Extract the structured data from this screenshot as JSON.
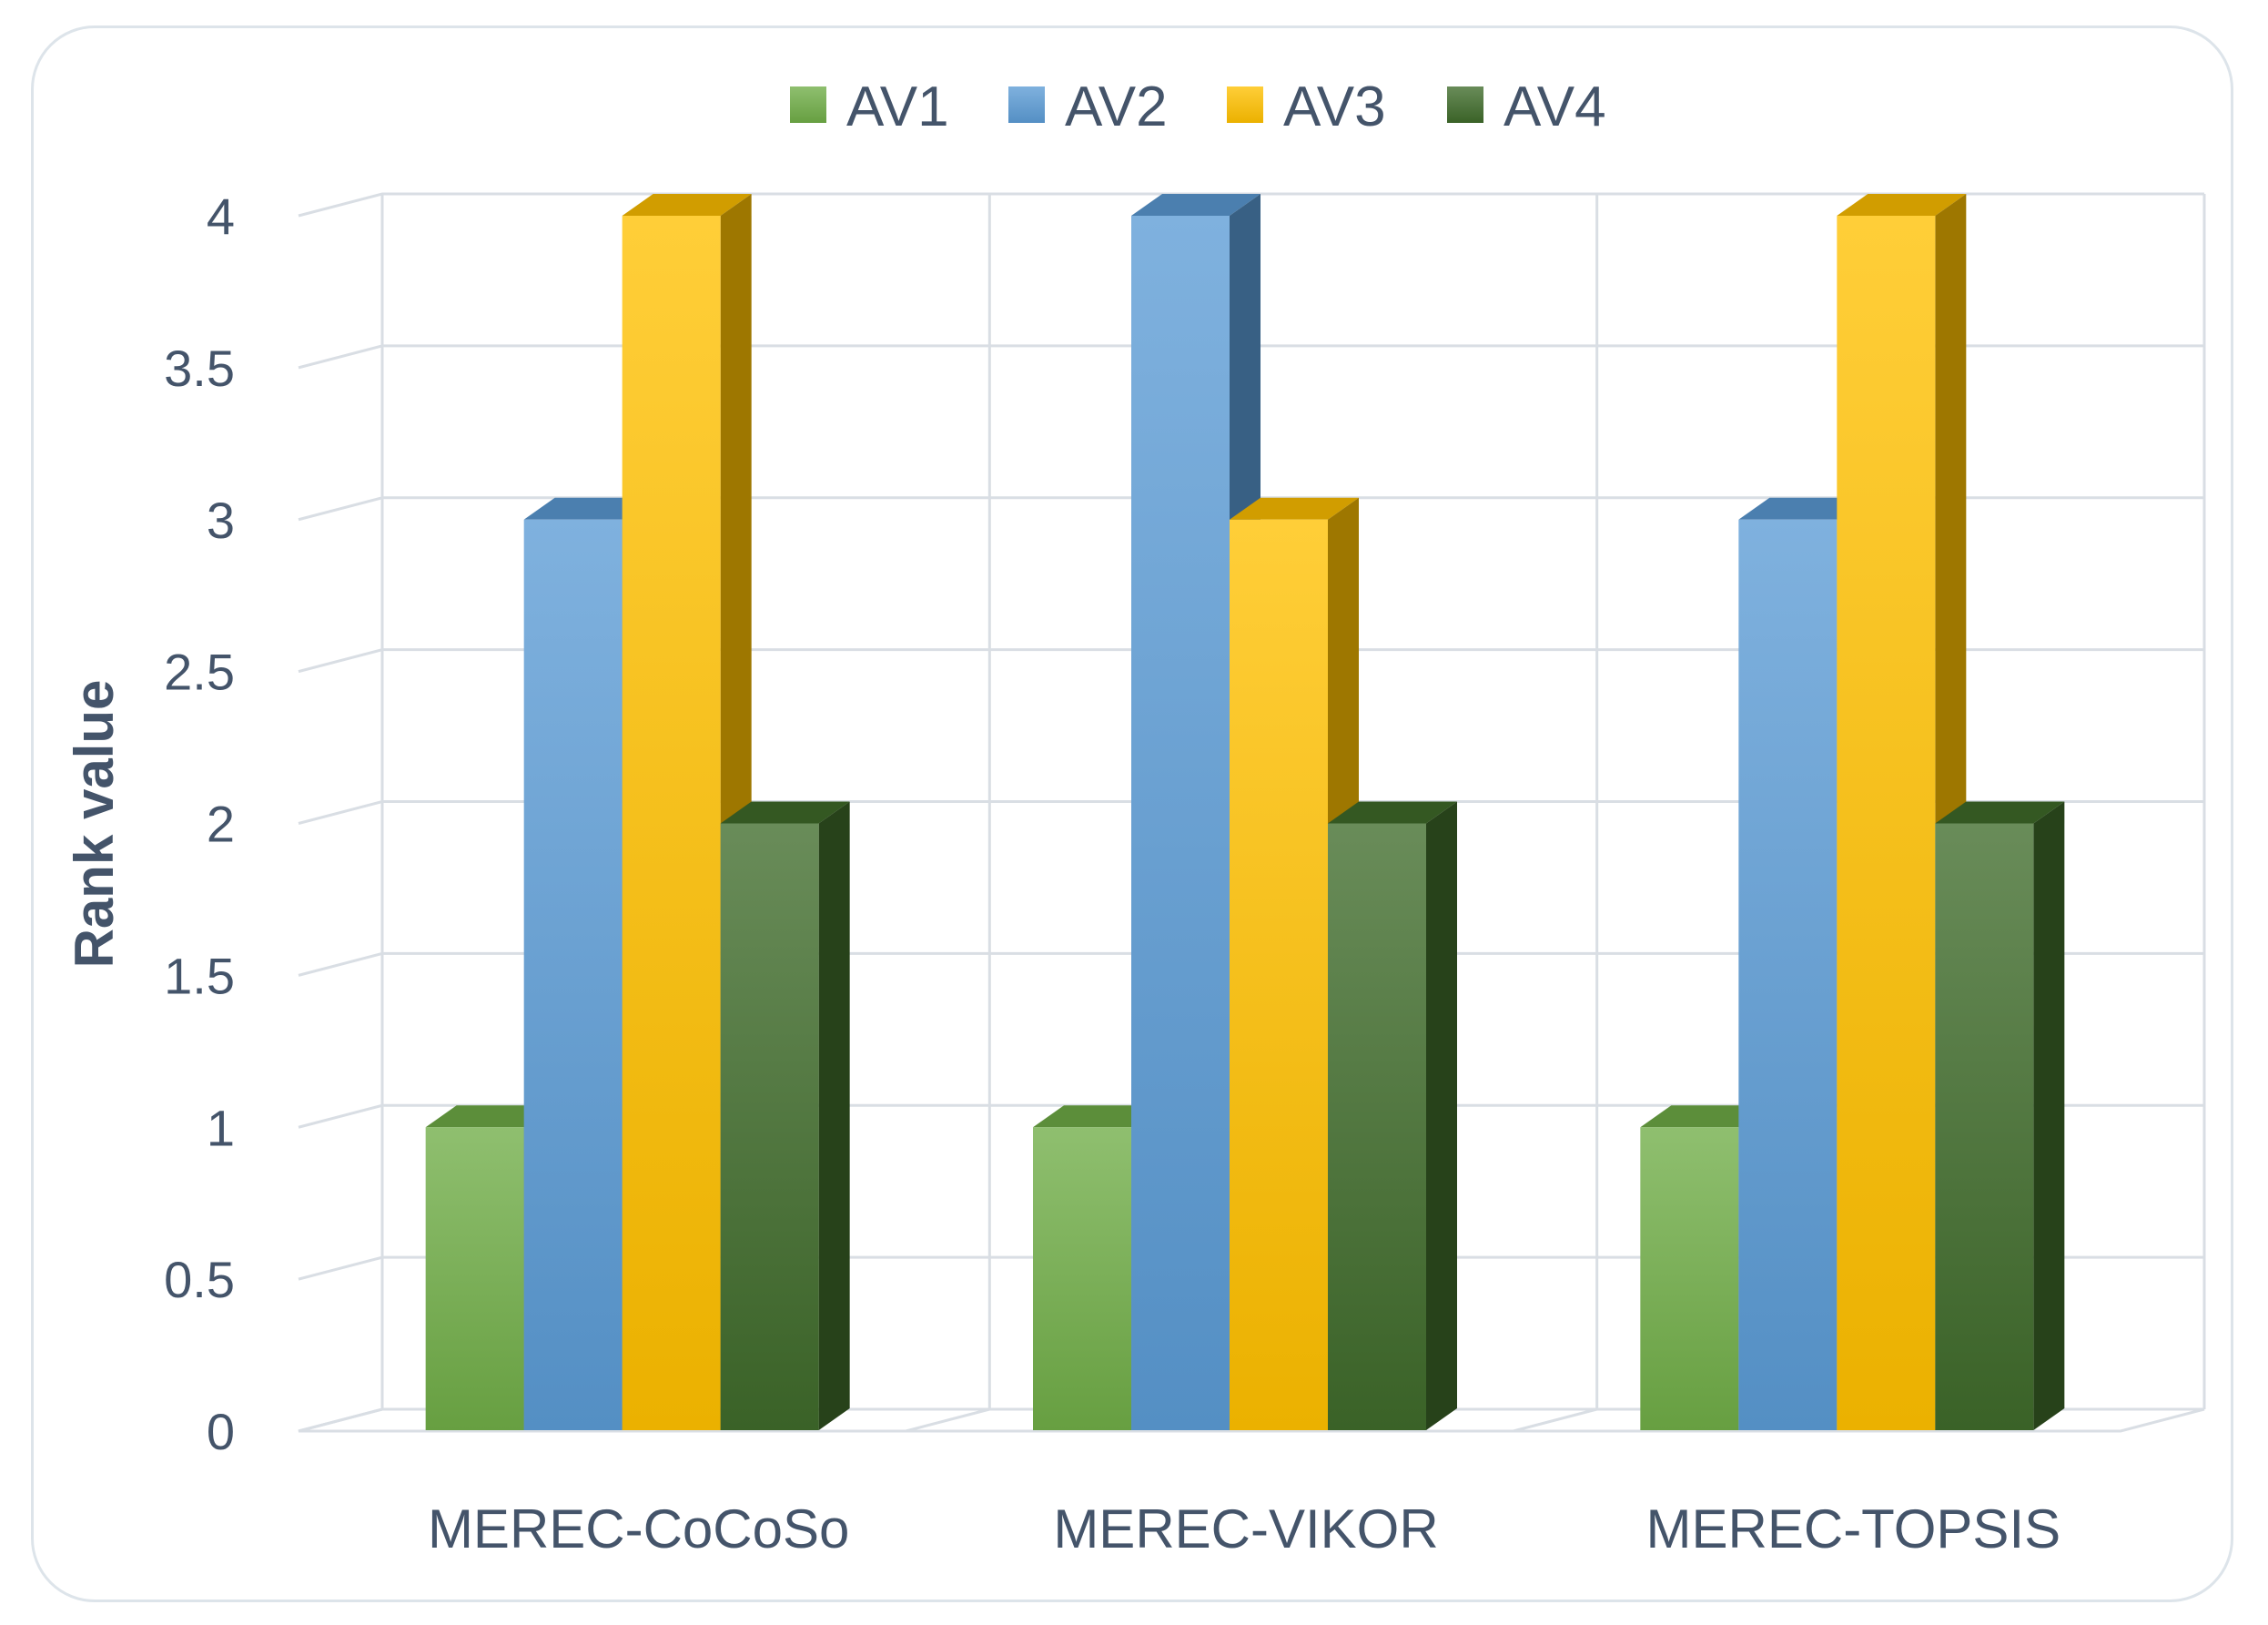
{
  "chart_data": {
    "type": "bar",
    "categories": [
      "MEREC-CoCoSo",
      "MEREC-VIKOR",
      "MEREC-TOPSIS"
    ],
    "series": [
      {
        "name": "AV1",
        "values": [
          1,
          1,
          1
        ],
        "color": "#70ad47"
      },
      {
        "name": "AV2",
        "values": [
          3,
          4,
          3
        ],
        "color": "#5b9bd5"
      },
      {
        "name": "AV3",
        "values": [
          4,
          3,
          4
        ],
        "color": "#ffc000"
      },
      {
        "name": "AV4",
        "values": [
          2,
          2,
          2
        ],
        "color": "#3f6b2a"
      }
    ],
    "title": "",
    "xlabel": "",
    "ylabel": "Rank value",
    "ylim": [
      0,
      4
    ],
    "yticks": [
      "0",
      "0.5",
      "1",
      "1.5",
      "2",
      "2.5",
      "3",
      "3.5",
      "4"
    ],
    "grid": true,
    "legend": "top",
    "style": "3d-column"
  }
}
